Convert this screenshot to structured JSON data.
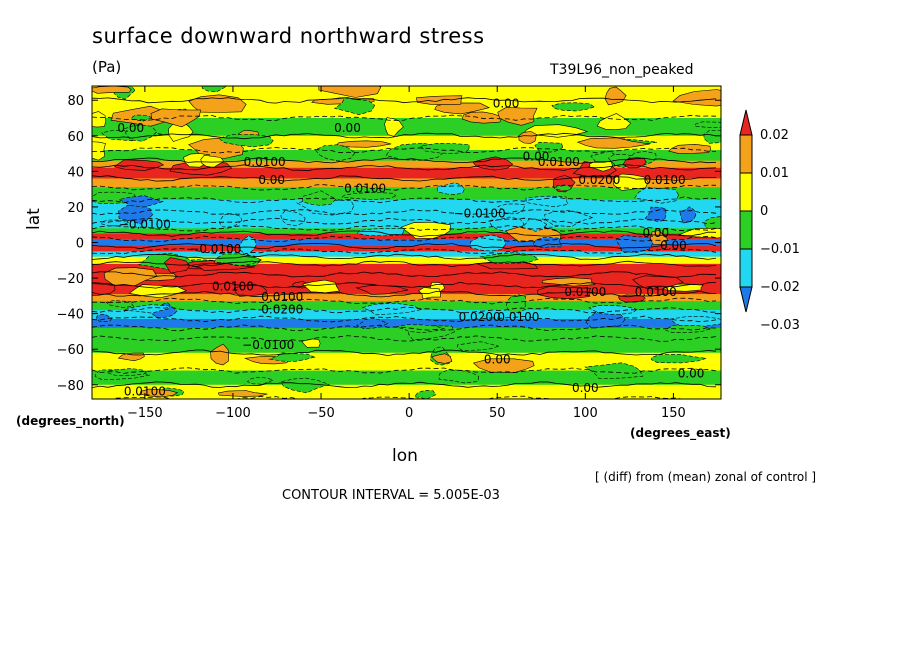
{
  "chart_data": {
    "type": "heatmap",
    "title": "surface downward northward stress",
    "units": "(Pa)",
    "run_label": "T39L96_non_peaked",
    "xlabel": "lon",
    "ylabel": "lat",
    "x_units": "(degrees_east)",
    "y_units": "(degrees_north)",
    "xlim": [
      -180,
      177
    ],
    "ylim": [
      -88,
      88
    ],
    "x_ticks": [
      "−150",
      "−100",
      "−50",
      "0",
      "50",
      "100",
      "150"
    ],
    "x_tick_values": [
      -150,
      -100,
      -50,
      0,
      50,
      100,
      150
    ],
    "y_ticks": [
      "80",
      "60",
      "40",
      "20",
      "0",
      "−20",
      "−40",
      "−60",
      "−80"
    ],
    "y_tick_values": [
      80,
      60,
      40,
      20,
      0,
      -20,
      -40,
      -60,
      -80
    ],
    "colorbar": {
      "labels": [
        "0.02",
        "0.01",
        "0",
        "−0.01",
        "−0.02",
        "−0.03"
      ],
      "colors": [
        "#e8251e",
        "#f5a21b",
        "#ffff00",
        "#2ccf24",
        "#22d8f0",
        "#1e7ae8"
      ]
    },
    "band_profile": [
      {
        "lat": 88,
        "v": 0.003
      },
      {
        "lat": 80,
        "v": 0.002
      },
      {
        "lat": 70,
        "v": -0.002
      },
      {
        "lat": 60,
        "v": 0.001
      },
      {
        "lat": 52,
        "v": -0.004
      },
      {
        "lat": 46,
        "v": 0.008
      },
      {
        "lat": 42,
        "v": 0.016
      },
      {
        "lat": 36,
        "v": 0.009
      },
      {
        "lat": 31,
        "v": -0.008
      },
      {
        "lat": 24,
        "v": -0.018
      },
      {
        "lat": 17,
        "v": -0.017
      },
      {
        "lat": 12,
        "v": -0.012
      },
      {
        "lat": 8,
        "v": -0.006
      },
      {
        "lat": 5,
        "v": 0.013
      },
      {
        "lat": 2,
        "v": -0.021
      },
      {
        "lat": -2,
        "v": 0.014
      },
      {
        "lat": -5,
        "v": -0.019
      },
      {
        "lat": -8,
        "v": 0.004
      },
      {
        "lat": -12,
        "v": 0.012
      },
      {
        "lat": -18,
        "v": 0.014
      },
      {
        "lat": -24,
        "v": 0.011
      },
      {
        "lat": -29,
        "v": 0.007
      },
      {
        "lat": -33,
        "v": -0.009
      },
      {
        "lat": -38,
        "v": -0.016
      },
      {
        "lat": -43,
        "v": -0.022
      },
      {
        "lat": -48,
        "v": -0.009
      },
      {
        "lat": -54,
        "v": -0.003
      },
      {
        "lat": -62,
        "v": 0.002
      },
      {
        "lat": -72,
        "v": -0.004
      },
      {
        "lat": -80,
        "v": 0.003
      },
      {
        "lat": -88,
        "v": -0.006
      }
    ],
    "contour_labels": [
      {
        "text": "0.00",
        "lon": -158,
        "lat": 62
      },
      {
        "text": "0.00",
        "lon": -35,
        "lat": 62
      },
      {
        "text": "0.00",
        "lon": 55,
        "lat": 76
      },
      {
        "text": "0.0100",
        "lon": -82,
        "lat": 43
      },
      {
        "text": "0.0100",
        "lon": -25,
        "lat": 28
      },
      {
        "text": "0.0100",
        "lon": 85,
        "lat": 43
      },
      {
        "text": "0.0200",
        "lon": 108,
        "lat": 33
      },
      {
        "text": "0.0100",
        "lon": 145,
        "lat": 33
      },
      {
        "text": "0.00",
        "lon": -78,
        "lat": 33
      },
      {
        "text": "0.00",
        "lon": 72,
        "lat": 46
      },
      {
        "text": "−0.0100",
        "lon": 40,
        "lat": 14
      },
      {
        "text": "−0.0100",
        "lon": -150,
        "lat": 8
      },
      {
        "text": "−0.0100",
        "lon": -110,
        "lat": -6
      },
      {
        "text": "0.0100",
        "lon": -100,
        "lat": -27
      },
      {
        "text": "0.0100",
        "lon": -72,
        "lat": -33
      },
      {
        "text": "0.0200",
        "lon": -72,
        "lat": -40
      },
      {
        "text": "0.0200",
        "lon": 40,
        "lat": -44
      },
      {
        "text": "0.0100",
        "lon": 100,
        "lat": -30
      },
      {
        "text": "0.0100",
        "lon": 140,
        "lat": -30
      },
      {
        "text": "0.0100",
        "lon": 62,
        "lat": -44
      },
      {
        "text": "−0.0100",
        "lon": -80,
        "lat": -60
      },
      {
        "text": "0.00",
        "lon": 50,
        "lat": -68
      },
      {
        "text": "0.00",
        "lon": 100,
        "lat": -84
      },
      {
        "text": "0.00",
        "lon": 160,
        "lat": -76
      },
      {
        "text": "0.0100",
        "lon": -150,
        "lat": -86
      },
      {
        "text": "0.00",
        "lon": 140,
        "lat": 3
      },
      {
        "text": "0.00",
        "lon": 150,
        "lat": -4
      }
    ]
  },
  "header": {
    "title": "surface downward northward stress",
    "units": "(Pa)",
    "run": "T39L96_non_peaked"
  },
  "axes": {
    "xlabel": "lon",
    "ylabel": "lat",
    "x_units": "(degrees_east)",
    "y_units": "(degrees_north)"
  },
  "footer": {
    "note": "[ (diff) from (mean) zonal of control ]",
    "interval": "CONTOUR INTERVAL = 5.005E-03"
  }
}
